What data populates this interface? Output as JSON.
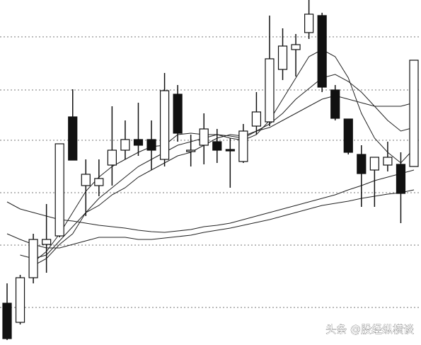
{
  "chart_data": {
    "type": "candlestick",
    "watermark": "头条 @股经纵横谈",
    "categories": [
      null,
      null,
      null,
      null,
      null,
      null,
      null,
      null,
      null,
      null,
      null,
      null,
      null,
      null,
      null,
      null,
      null,
      null,
      null,
      null,
      null,
      null,
      null,
      null,
      null,
      null,
      null,
      null,
      null,
      null,
      null,
      null
    ],
    "open": [
      59,
      32,
      95,
      142,
      154,
      322,
      225,
      225,
      254,
      275,
      290,
      290,
      262,
      354,
      275,
      282,
      287,
      276,
      259,
      309,
      315,
      389,
      417,
      441,
      465,
      360,
      319,
      269,
      247,
      254,
      255,
      252
    ],
    "high": [
      87,
      99,
      157,
      199,
      284,
      361,
      262,
      262,
      337,
      317,
      342,
      317,
      384,
      367,
      297,
      327,
      305,
      292,
      312,
      357,
      465,
      447,
      439,
      487,
      469,
      367,
      319,
      282,
      265,
      287,
      272,
      402
    ],
    "low": [
      7,
      29,
      87,
      102,
      152,
      261,
      182,
      210,
      225,
      262,
      267,
      247,
      252,
      287,
      252,
      255,
      257,
      222,
      257,
      297,
      309,
      374,
      379,
      432,
      357,
      317,
      269,
      195,
      195,
      245,
      172,
      252
    ],
    "close": [
      9,
      95,
      149,
      149,
      284,
      261,
      241,
      235,
      275,
      290,
      282,
      275,
      359,
      299,
      275,
      305,
      275,
      274,
      302,
      329,
      404,
      422,
      424,
      467,
      364,
      320,
      272,
      242,
      265,
      265,
      214,
      402
    ],
    "up_color": "#ffffff",
    "down_color": "#111111",
    "edge_color": "#111111",
    "lines": [
      {
        "color": "#222222",
        "values": [
          null,
          null,
          117,
          132,
          157,
          187,
          217,
          237,
          252,
          262,
          272,
          280,
          282,
          297,
          299,
          297,
          297,
          292,
          289,
          297,
          317,
          347,
          377,
          407,
          417,
          407,
          377,
          327,
          292,
          272,
          257,
          277
        ]
      },
      {
        "color": "#222222",
        "values": [
          null,
          null,
          112,
          122,
          142,
          157,
          187,
          207,
          222,
          237,
          252,
          262,
          272,
          282,
          287,
          292,
          297,
          295,
          292,
          302,
          312,
          327,
          347,
          362,
          377,
          382,
          372,
          357,
          337,
          317,
          302,
          307
        ]
      },
      {
        "color": "#222222",
        "values": [
          null,
          127,
          122,
          127,
          147,
          167,
          187,
          197,
          212,
          222,
          237,
          247,
          257,
          267,
          272,
          282,
          292,
          297,
          295,
          302,
          307,
          317,
          327,
          337,
          347,
          352,
          347,
          342,
          337,
          337,
          337,
          342
        ]
      },
      {
        "color": "#222222",
        "values": [
          202,
          192,
          187,
          182,
          177,
          175,
          172,
          169,
          167,
          165,
          162,
          160,
          159,
          161,
          163,
          167,
          169,
          172,
          177,
          182,
          187,
          192,
          197,
          202,
          207,
          212,
          219,
          225,
          232,
          237,
          242,
          247
        ]
      },
      {
        "color": "#222222",
        "values": [
          157,
          149,
          142,
          137,
          137,
          142,
          147,
          152,
          152,
          152,
          149,
          149,
          151,
          153,
          155,
          159,
          162,
          165,
          169,
          173,
          177,
          182,
          187,
          192,
          197,
          200,
          203,
          207,
          210,
          213,
          215,
          219
        ]
      }
    ],
    "ylim": [
      0,
      487
    ],
    "yticks": [
      53,
      141,
      215,
      289,
      360,
      435
    ],
    "grid": true
  }
}
